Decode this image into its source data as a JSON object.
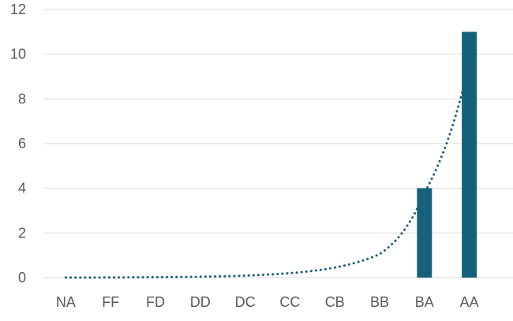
{
  "chart_data": {
    "type": "bar",
    "categories": [
      "NA",
      "FF",
      "FD",
      "DD",
      "DC",
      "CC",
      "CB",
      "BB",
      "BA",
      "AA"
    ],
    "series": [
      {
        "values": [
          0,
          0,
          0,
          0,
          0,
          0,
          0,
          0,
          4,
          11
        ],
        "color": "#15607a"
      }
    ],
    "trendline": {
      "type": "exponential",
      "style": "dotted",
      "color": "#1f5d7a",
      "values": [
        0.003,
        0.008,
        0.02,
        0.04,
        0.09,
        0.2,
        0.45,
        1.05,
        3.8,
        9.6
      ]
    },
    "yticks": [
      "0",
      "2",
      "4",
      "6",
      "8",
      "10",
      "12"
    ],
    "ylim": [
      0,
      12
    ],
    "grid": true,
    "gridColor": "#d9d9d9",
    "legend": "none"
  }
}
